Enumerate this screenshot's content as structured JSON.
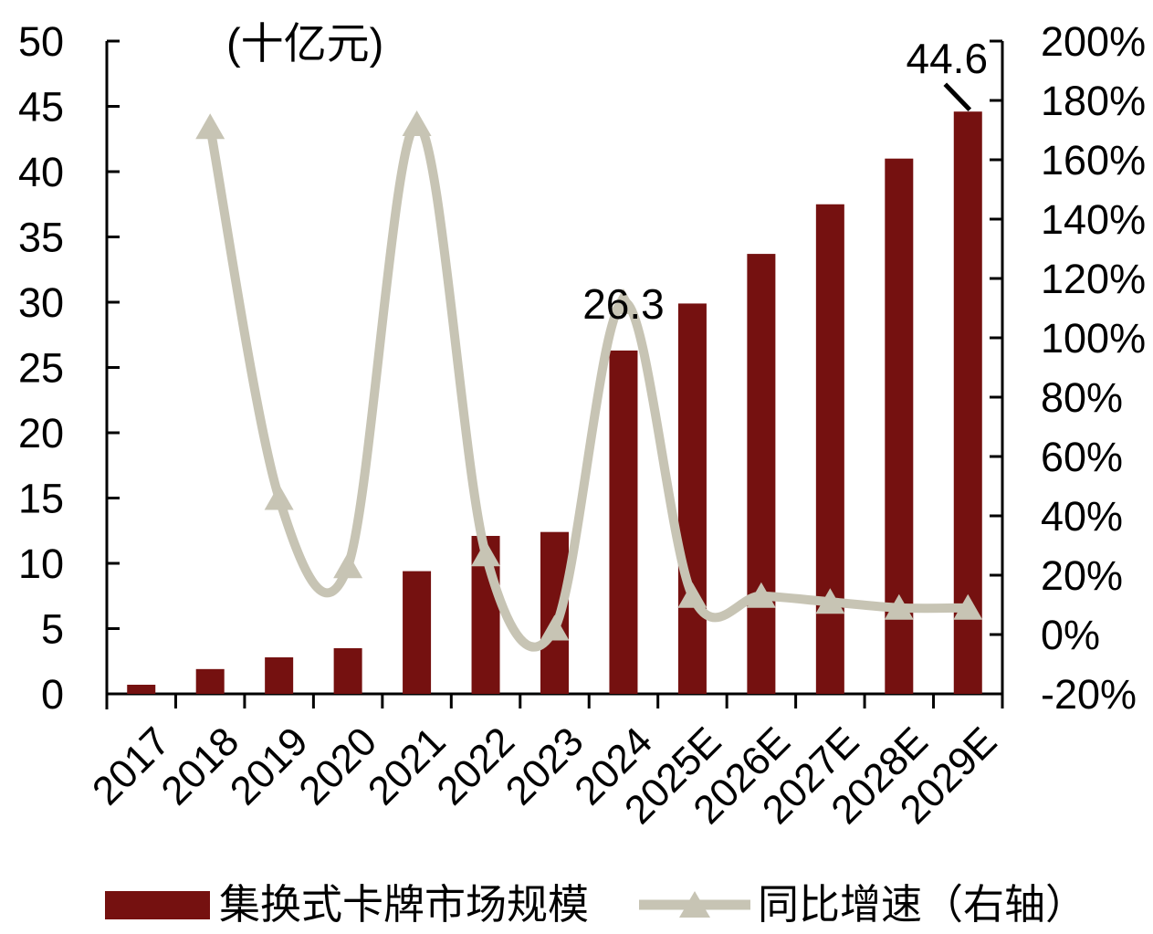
{
  "chart_data": {
    "type": "combo-bar-line",
    "title_unit": "(十亿元)",
    "categories": [
      "2017",
      "2018",
      "2019",
      "2020",
      "2021",
      "2022",
      "2023",
      "2024",
      "2025E",
      "2026E",
      "2027E",
      "2028E",
      "2029E"
    ],
    "series": [
      {
        "name": "集换式卡牌市场规模",
        "type": "bar",
        "axis": "left",
        "color": "#751110",
        "values": [
          0.7,
          1.9,
          2.8,
          3.5,
          9.4,
          12.1,
          12.4,
          26.3,
          29.9,
          33.7,
          37.5,
          41.0,
          44.6
        ]
      },
      {
        "name": "同比增速（右轴）",
        "type": "line",
        "axis": "right",
        "color": "#c7c4b4",
        "values": [
          null,
          171,
          46,
          23,
          172,
          27,
          2,
          112,
          13,
          13,
          11,
          9,
          9
        ]
      }
    ],
    "left_axis": {
      "min": 0,
      "max": 50,
      "step": 5,
      "tick_labels": [
        "0",
        "5",
        "10",
        "15",
        "20",
        "25",
        "30",
        "35",
        "40",
        "45",
        "50"
      ]
    },
    "right_axis": {
      "min": -20,
      "max": 200,
      "step": 20,
      "suffix": "%",
      "tick_labels": [
        "-20%",
        "0%",
        "20%",
        "40%",
        "60%",
        "80%",
        "100%",
        "120%",
        "140%",
        "160%",
        "180%",
        "200%"
      ]
    },
    "annotations": [
      {
        "text": "26.3",
        "category": "2024",
        "attach": "line",
        "callout": false
      },
      {
        "text": "44.6",
        "category": "2029E",
        "attach": "bar",
        "callout": true
      }
    ],
    "legend": [
      {
        "label": "集换式卡牌市场规模",
        "swatch": "bar"
      },
      {
        "label": "同比增速（右轴）",
        "swatch": "line"
      }
    ],
    "grid": false,
    "legend_position": "bottom"
  },
  "colors": {
    "bar": "#751110",
    "line": "#c7c4b4",
    "text": "#000000",
    "axis": "#000000",
    "background": "#ffffff"
  }
}
